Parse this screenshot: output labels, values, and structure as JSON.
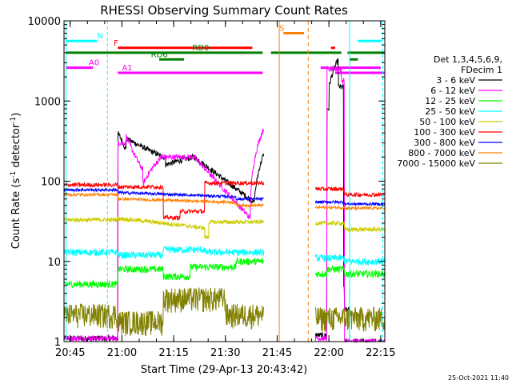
{
  "chart_data": {
    "type": "line",
    "title": "RHESSI Observing Summary Count Rates",
    "xlabel": "Start Time (29-Apr-13 20:43:42)",
    "ylabel": "Count Rate (s",
    "ylabel_sup1": "-1",
    "ylabel_mid": " detector",
    "ylabel_sup2": "-1",
    "ylabel_end": ")",
    "x_range_min": [
      20.72,
      22.27
    ],
    "y_scale": "log",
    "ylim": [
      1,
      10000
    ],
    "x_ticks": [
      {
        "label": "20:45",
        "value": 20.75
      },
      {
        "label": "21:00",
        "value": 21.0
      },
      {
        "label": "21:15",
        "value": 21.25
      },
      {
        "label": "21:30",
        "value": 21.5
      },
      {
        "label": "21:45",
        "value": 21.75
      },
      {
        "label": "22:00",
        "value": 22.0
      },
      {
        "label": "22:15",
        "value": 22.25
      }
    ],
    "y_ticks": [
      {
        "label": "1",
        "value": 1
      },
      {
        "label": "10",
        "value": 10
      },
      {
        "label": "100",
        "value": 100
      },
      {
        "label": "1000",
        "value": 1000
      },
      {
        "label": "10000",
        "value": 10000
      }
    ],
    "legend_header": [
      "Det 1,3,4,5,6,9,",
      "FDecim 1"
    ],
    "legend_position": "right",
    "series": [
      {
        "name": "3 - 6 keV",
        "color": "#000000"
      },
      {
        "name": "6 - 12 keV",
        "color": "#ff00ff"
      },
      {
        "name": "12 - 25 keV",
        "color": "#00ff00"
      },
      {
        "name": "25 - 50 keV",
        "color": "#00ffff"
      },
      {
        "name": "50 - 100 keV",
        "color": "#cccc00"
      },
      {
        "name": "100 - 300 keV",
        "color": "#ff0000"
      },
      {
        "name": "300 - 800 keV",
        "color": "#0000ff"
      },
      {
        "name": "800 - 7000 keV",
        "color": "#ff8000"
      },
      {
        "name": "7000 - 15000 keV",
        "color": "#808000"
      }
    ],
    "flag_bars": [
      {
        "label": "N",
        "color": "#00ffff",
        "level": 5600
      },
      {
        "label": "F",
        "color": "#ff0000",
        "level": 4600
      },
      {
        "label": "RD0",
        "color": "#008000",
        "level": 4000
      },
      {
        "label": "RD6",
        "color": "#008000",
        "level": 3300
      },
      {
        "label": "A0",
        "color": "#ff00ff",
        "level": 2600
      },
      {
        "label": "A1",
        "color": "#ff00ff",
        "level": 2250
      },
      {
        "label": "S",
        "color": "#ff8000",
        "level": 7000
      }
    ],
    "timestamp": "25-Oct-2021 11:40"
  }
}
